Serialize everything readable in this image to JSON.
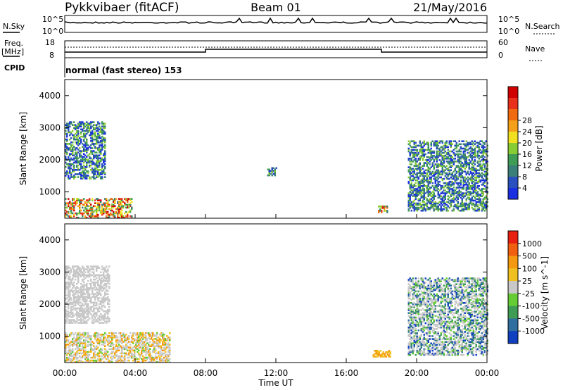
{
  "header": {
    "station": "Pykkvibaer (fitACF)",
    "beam": "Beam 01",
    "date": "21/May/2016"
  },
  "strips": {
    "nsky_label": "N.Sky",
    "nsky_ticks": [
      "10^5",
      "10^0"
    ],
    "nsearch_label": "N.Search",
    "nsearch_ticks": [
      "10^5",
      "10^0"
    ],
    "freq_label_1": "Freq.",
    "freq_label_2": "[MHz]",
    "freq_ticks": [
      "18",
      "8"
    ],
    "nave_label": "Nave",
    "nave_ticks": [
      "60",
      "0"
    ],
    "cpid_label": "CPID",
    "cpid_text": "normal (fast stereo) 153"
  },
  "chart_data": [
    {
      "type": "heatmap",
      "panel": "power",
      "ylabel": "Slant Range [km]",
      "yticks": [
        "1000",
        "2000",
        "3000",
        "4000"
      ],
      "ylim": [
        180,
        4500
      ],
      "xlim": [
        0,
        24
      ],
      "colorbar_label": "Power [dB]",
      "colorbar_ticks": [
        "4",
        "8",
        "12",
        "16",
        "20",
        "24",
        "28"
      ],
      "colorbar_colors": [
        "#1a2fe0",
        "#2a4fbe",
        "#3b7f7a",
        "#3f9c54",
        "#88cc33",
        "#f0e020",
        "#f5a01a",
        "#f06a10",
        "#e8301a",
        "#d10000"
      ],
      "regions": [
        {
          "t": [
            0.0,
            3.8
          ],
          "r": [
            180,
            800
          ],
          "level": "high"
        },
        {
          "t": [
            0.0,
            2.3
          ],
          "r": [
            1400,
            3200
          ],
          "level": "mid"
        },
        {
          "t": [
            11.5,
            12.0
          ],
          "r": [
            1500,
            1750
          ],
          "level": "mid"
        },
        {
          "t": [
            17.8,
            18.3
          ],
          "r": [
            350,
            550
          ],
          "level": "high"
        },
        {
          "t": [
            19.5,
            24.0
          ],
          "r": [
            400,
            2600
          ],
          "level": "mid"
        }
      ]
    },
    {
      "type": "heatmap",
      "panel": "velocity",
      "ylabel": "Slant Range [km]",
      "yticks": [
        "1000",
        "2000",
        "3000",
        "4000"
      ],
      "ylim": [
        180,
        4500
      ],
      "xlim": [
        0,
        24
      ],
      "xticks": [
        "00:00",
        "04:00",
        "08:00",
        "12:00",
        "16:00",
        "20:00",
        "00:00"
      ],
      "xlabel": "Time UT",
      "colorbar_label": "Velocity [m s^-1]",
      "colorbar_ticks": [
        "1000",
        "500",
        "100",
        "25",
        "-25",
        "-100",
        "-500",
        "-1000"
      ],
      "colorbar_colors": [
        "#1040c0",
        "#2f6fa0",
        "#3f9c54",
        "#66cc33",
        "#c8c8c8",
        "#f0c020",
        "#f59a10",
        "#f06010",
        "#e82010"
      ],
      "regions": [
        {
          "t": [
            0.0,
            6.0
          ],
          "r": [
            180,
            1100
          ],
          "level": "gray-orange"
        },
        {
          "t": [
            0.0,
            2.5
          ],
          "r": [
            1400,
            3200
          ],
          "level": "gray"
        },
        {
          "t": [
            17.5,
            18.5
          ],
          "r": [
            350,
            550
          ],
          "level": "orange"
        },
        {
          "t": [
            19.5,
            24.0
          ],
          "r": [
            400,
            2800
          ],
          "level": "gray-green"
        }
      ]
    }
  ]
}
